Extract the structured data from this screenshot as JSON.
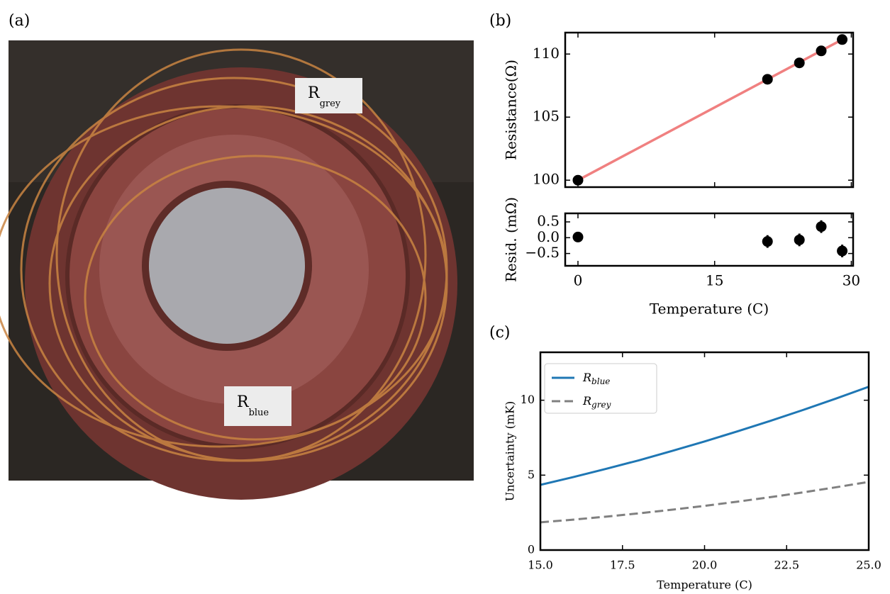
{
  "panel_labels": [
    "(a)",
    "(b)",
    "(c)"
  ],
  "photo": {
    "labels": [
      {
        "text": "R",
        "sub": "grey"
      },
      {
        "text": "R",
        "sub": "blue"
      }
    ]
  },
  "chart_data": [
    {
      "type": "scatter",
      "ylabel": "Resistance(Ω)",
      "x": [
        0,
        20.8,
        24.3,
        26.7,
        29
      ],
      "values": [
        100,
        108.0,
        109.3,
        110.25,
        111.15
      ],
      "color": "#000000",
      "fit": {
        "x": [
          0,
          29
        ],
        "values": [
          100,
          111.15
        ],
        "color": "#f08080"
      },
      "xlim": [
        -1.4,
        30.2
      ],
      "ylim": [
        99.45,
        111.7
      ],
      "yticks": [
        100,
        105,
        110
      ]
    },
    {
      "type": "errorbar",
      "ylabel": "Resid. (mΩ)",
      "xlabel": "Temperature (C)",
      "x": [
        0,
        20.8,
        24.3,
        26.7,
        29
      ],
      "values": [
        0.02,
        -0.12,
        -0.07,
        0.35,
        -0.42
      ],
      "errors": [
        0.15,
        0.2,
        0.2,
        0.2,
        0.2
      ],
      "color": "#000000",
      "xlim": [
        -1.4,
        30.2
      ],
      "ylim": [
        -0.89,
        0.77
      ],
      "xticks": [
        0,
        15,
        30
      ],
      "yticks": [
        0.5,
        {
          "value": 0,
          "label": "0.0"
        },
        {
          "value": -0.5,
          "label": "−0.5"
        }
      ]
    },
    {
      "type": "line",
      "ylabel": "Uncertainty (mK)",
      "xlabel": "Temperature (C)",
      "x": [
        15,
        16,
        17,
        18,
        19,
        20,
        21,
        22,
        23,
        24,
        25
      ],
      "series": [
        {
          "name": "R",
          "subscript": "blue",
          "color": "#1f77b4",
          "linestyle": "solid",
          "values": [
            4.35,
            4.87,
            5.42,
            5.99,
            6.61,
            7.25,
            7.92,
            8.62,
            9.35,
            10.11,
            10.9
          ]
        },
        {
          "name": "R",
          "subscript": "grey",
          "color": "#808080",
          "linestyle": "dashed",
          "values": [
            1.85,
            2.03,
            2.23,
            2.45,
            2.69,
            2.95,
            3.23,
            3.53,
            3.85,
            4.19,
            4.55
          ]
        }
      ],
      "xlim": [
        15,
        25
      ],
      "ylim": [
        0,
        13.2
      ],
      "xticks": [
        {
          "value": 15,
          "label": "15.0"
        },
        17.5,
        {
          "value": 20,
          "label": "20.0"
        },
        22.5,
        {
          "value": 25,
          "label": "25.0"
        }
      ],
      "yticks": [
        0,
        5,
        10
      ],
      "legend": "upper left"
    }
  ]
}
